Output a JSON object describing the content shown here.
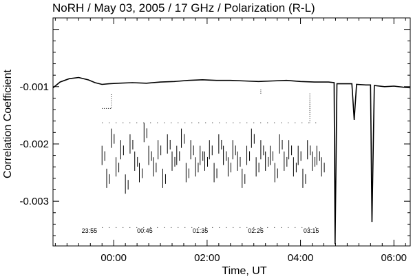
{
  "chart_data": {
    "type": "line",
    "title": "NoRH / May 03, 2005 / 17 GHz / Polarization (R-L)",
    "xlabel": "Time, UT",
    "ylabel": "Correlation Coefficient",
    "xlim": [
      -1.3,
      6.35
    ],
    "ylim": [
      -0.00378,
      0.0002
    ],
    "x_ticks": [
      {
        "value": 0,
        "label": "00:00"
      },
      {
        "value": 2,
        "label": "02:00"
      },
      {
        "value": 4,
        "label": "04:00"
      },
      {
        "value": 6,
        "label": "06:00"
      }
    ],
    "y_ticks": [
      {
        "value": -0.001,
        "label": "-0.001"
      },
      {
        "value": -0.002,
        "label": "-0.002"
      },
      {
        "value": -0.003,
        "label": "-0.003"
      }
    ],
    "inset_time_labels": [
      "23:55",
      "00:45",
      "01:35",
      "02:25",
      "03:15"
    ],
    "series": [
      {
        "x": [
          -1.3,
          -1.15,
          -0.95,
          -0.75,
          -0.55,
          -0.4,
          -0.25,
          -0.1,
          0.1,
          0.4,
          0.7,
          1.0,
          1.3,
          1.6,
          1.9,
          2.2,
          2.5,
          2.8,
          3.1,
          3.4,
          3.7,
          4.0,
          4.3,
          4.6,
          4.72,
          4.74,
          4.78,
          4.9,
          5.1,
          5.15,
          5.2,
          5.4,
          5.5,
          5.53,
          5.58,
          5.8,
          6.0,
          6.2,
          6.35
        ],
        "y": [
          -0.00102,
          -0.00092,
          -0.00086,
          -0.00084,
          -0.00088,
          -0.00093,
          -0.00096,
          -0.00095,
          -0.00094,
          -0.00093,
          -0.00094,
          -0.00092,
          -0.00091,
          -0.00089,
          -0.00088,
          -0.00089,
          -0.00089,
          -0.0009,
          -0.00091,
          -0.0009,
          -0.00089,
          -0.00091,
          -0.00092,
          -0.00092,
          -0.00093,
          -0.00375,
          -0.00095,
          -0.00095,
          -0.00095,
          -0.00158,
          -0.00096,
          -0.00097,
          -0.00097,
          -0.00336,
          -0.00098,
          -0.001,
          -0.00099,
          -0.00101,
          -0.00102
        ]
      }
    ],
    "inset_series": {
      "x": [
        -0.25,
        -0.15,
        -0.05,
        0.05,
        0.15,
        0.25,
        0.35,
        0.45,
        0.55,
        0.65,
        0.75,
        0.85,
        0.95,
        1.05,
        1.15,
        1.25,
        1.35,
        1.45,
        1.55,
        1.65,
        1.75,
        1.85,
        1.95,
        2.05,
        2.15,
        2.25,
        2.35,
        2.45,
        2.55,
        2.65,
        2.75,
        2.85,
        2.95,
        3.05,
        3.15,
        3.25,
        3.35,
        3.45,
        3.55,
        3.65,
        3.75,
        3.85,
        3.95,
        4.05,
        4.15,
        4.25,
        4.35,
        4.45
      ],
      "y": [
        -0.0022,
        -0.0026,
        -0.0019,
        -0.0024,
        -0.0021,
        -0.0027,
        -0.002,
        -0.0023,
        -0.0025,
        -0.0018,
        -0.0022,
        -0.0024,
        -0.0021,
        -0.0026,
        -0.002,
        -0.0023,
        -0.0022,
        -0.0019,
        -0.0025,
        -0.0021,
        -0.0024,
        -0.0022,
        -0.0023,
        -0.0021,
        -0.0025,
        -0.002,
        -0.0022,
        -0.0024,
        -0.0021,
        -0.0023,
        -0.0026,
        -0.0022,
        -0.0019,
        -0.0024,
        -0.0021,
        -0.0023,
        -0.0022,
        -0.0025,
        -0.002,
        -0.0023,
        -0.0021,
        -0.0024,
        -0.0022,
        -0.0026,
        -0.0021,
        -0.0023,
        -0.0022,
        -0.0024
      ]
    }
  }
}
